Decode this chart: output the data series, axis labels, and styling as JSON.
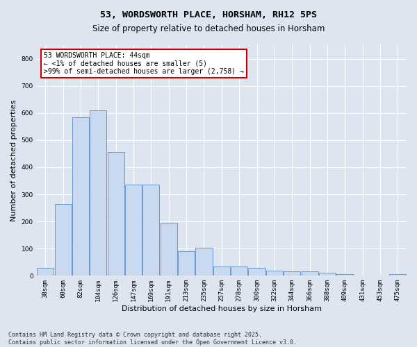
{
  "title": "53, WORDSWORTH PLACE, HORSHAM, RH12 5PS",
  "subtitle": "Size of property relative to detached houses in Horsham",
  "xlabel": "Distribution of detached houses by size in Horsham",
  "ylabel": "Number of detached properties",
  "categories": [
    "38sqm",
    "60sqm",
    "82sqm",
    "104sqm",
    "126sqm",
    "147sqm",
    "169sqm",
    "191sqm",
    "213sqm",
    "235sqm",
    "257sqm",
    "278sqm",
    "300sqm",
    "322sqm",
    "344sqm",
    "366sqm",
    "388sqm",
    "409sqm",
    "431sqm",
    "453sqm",
    "475sqm"
  ],
  "values": [
    30,
    265,
    585,
    610,
    455,
    335,
    335,
    195,
    90,
    102,
    35,
    35,
    30,
    18,
    15,
    15,
    12,
    5,
    0,
    0,
    5
  ],
  "bar_color": "#c9d9f0",
  "bar_edge_color": "#5b8fc9",
  "annotation_text": "53 WORDSWORTH PLACE: 44sqm\n← <1% of detached houses are smaller (5)\n>99% of semi-detached houses are larger (2,758) →",
  "annotation_box_color": "#ffffff",
  "annotation_box_edge_color": "#cc0000",
  "ylim": [
    0,
    850
  ],
  "yticks": [
    0,
    100,
    200,
    300,
    400,
    500,
    600,
    700,
    800
  ],
  "background_color": "#dde5f0",
  "grid_color": "#ffffff",
  "footer_line1": "Contains HM Land Registry data © Crown copyright and database right 2025.",
  "footer_line2": "Contains public sector information licensed under the Open Government Licence v3.0.",
  "title_fontsize": 9.5,
  "subtitle_fontsize": 8.5,
  "xlabel_fontsize": 8,
  "ylabel_fontsize": 8,
  "tick_fontsize": 6.5,
  "annotation_fontsize": 7,
  "footer_fontsize": 6
}
